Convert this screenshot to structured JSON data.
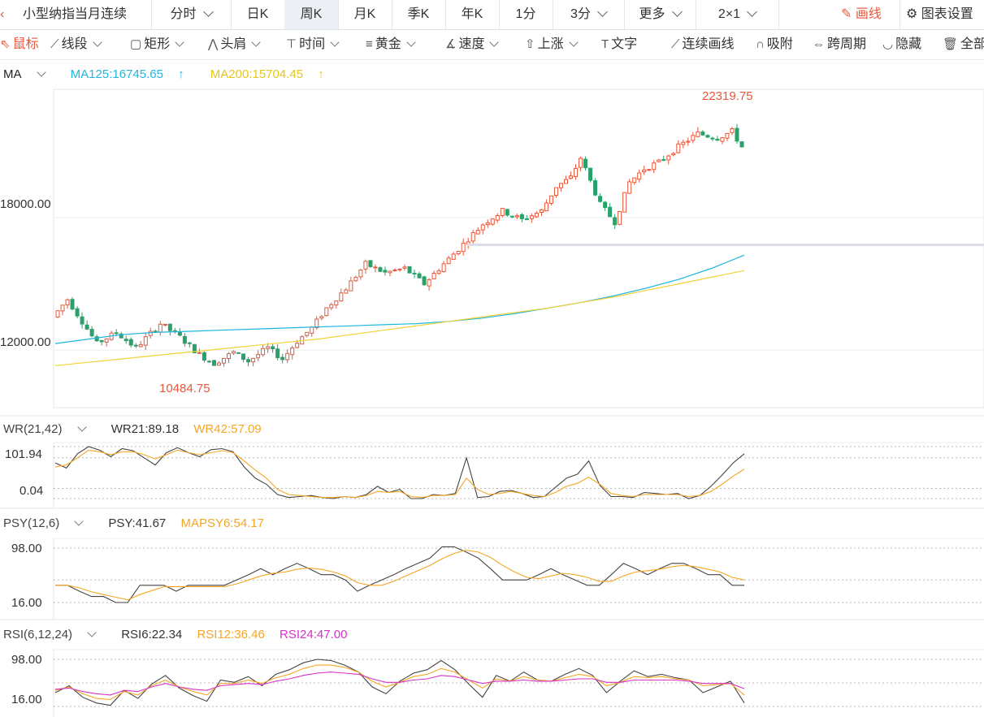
{
  "period_bar": {
    "title": "小型纳指当月连续",
    "items": [
      {
        "label": "分时",
        "dropdown": true
      },
      {
        "label": "日K",
        "dropdown": false
      },
      {
        "label": "周K",
        "dropdown": false,
        "active": true
      },
      {
        "label": "月K",
        "dropdown": false
      },
      {
        "label": "季K",
        "dropdown": false
      },
      {
        "label": "年K",
        "dropdown": false
      },
      {
        "label": "1分",
        "dropdown": false
      },
      {
        "label": "3分",
        "dropdown": true
      },
      {
        "label": "更多",
        "dropdown": true
      },
      {
        "label": "2×1",
        "dropdown": true
      }
    ],
    "draw_label": "画线",
    "settings_label": "图表设置"
  },
  "draw_toolbar": {
    "tools": [
      {
        "label": "鼠标",
        "icon": "cursor-icon",
        "dropdown": false,
        "active": true
      },
      {
        "label": "线段",
        "icon": "segment-icon",
        "dropdown": true
      },
      {
        "label": "矩形",
        "icon": "rectangle-icon",
        "dropdown": true
      },
      {
        "label": "头肩",
        "icon": "head-shoulders-icon",
        "dropdown": true
      },
      {
        "label": "时间",
        "icon": "time-icon",
        "dropdown": true
      },
      {
        "label": "黄金",
        "icon": "golden-ratio-icon",
        "dropdown": true
      },
      {
        "label": "速度",
        "icon": "speed-icon",
        "dropdown": true
      },
      {
        "label": "上涨",
        "icon": "arrow-up-icon",
        "dropdown": true
      },
      {
        "label": "文字",
        "icon": "text-icon",
        "dropdown": false
      },
      {
        "label": "连续画线",
        "icon": "continuous-line-icon",
        "dropdown": false
      },
      {
        "label": "吸附",
        "icon": "magnet-icon",
        "dropdown": false
      },
      {
        "label": "跨周期",
        "icon": "cross-period-icon",
        "dropdown": false
      },
      {
        "label": "隐藏",
        "icon": "eye-hidden-icon",
        "dropdown": false
      },
      {
        "label": "全部",
        "icon": "trash-icon",
        "dropdown": false
      }
    ]
  },
  "main_panel": {
    "indicator": "MA",
    "ma125": "MA125:16745.65",
    "ma125_arrow": "↑",
    "ma200": "MA200:15704.45",
    "ma200_arrow": "↑",
    "y_ticks": [
      "18000.00",
      "12000.00"
    ],
    "high_label": "22319.75",
    "low_label": "10484.75"
  },
  "wr_panel": {
    "indicator": "WR(21,42)",
    "wr21": "WR21:89.18",
    "wr42": "WR42:57.09",
    "y_ticks": [
      "101.94",
      "0.04"
    ]
  },
  "psy_panel": {
    "indicator": "PSY(12,6)",
    "psy": "PSY:41.67",
    "mapsy": "MAPSY6:54.17",
    "y_ticks": [
      "98.00",
      "16.00"
    ]
  },
  "rsi_panel": {
    "indicator": "RSI(6,12,24)",
    "rsi6": "RSI6:22.34",
    "rsi12": "RSI12:36.46",
    "rsi24": "RSI24:47.00",
    "y_ticks": [
      "98.00",
      "16.00"
    ]
  },
  "colors": {
    "up": "#e8573b",
    "down": "#2aa16a",
    "ma125": "#1fb6e0",
    "ma200": "#f0d234",
    "wr21": "#444444",
    "wr42": "#f5a623",
    "psy": "#444444",
    "mapsy": "#f5a623",
    "rsi6": "#444444",
    "rsi12": "#f5a623",
    "rsi24": "#d633c8",
    "accent": "#e8573b"
  },
  "chart_data": [
    {
      "type": "candlestick",
      "title": "",
      "y_ticks": [
        18000,
        12000
      ],
      "ylim": [
        9400,
        23800
      ],
      "n_bars": 120,
      "high": 22319.75,
      "low": 10484.75,
      "ohlc_keypoints": [
        [
          0,
          13500
        ],
        [
          3,
          14300
        ],
        [
          6,
          13300
        ],
        [
          9,
          12300
        ],
        [
          13,
          12800
        ],
        [
          17,
          12100
        ],
        [
          22,
          13200
        ],
        [
          26,
          12600
        ],
        [
          30,
          11800
        ],
        [
          33,
          11400
        ],
        [
          37,
          11900
        ],
        [
          40,
          11500
        ],
        [
          44,
          12100
        ],
        [
          47,
          11600
        ],
        [
          50,
          12400
        ],
        [
          53,
          13000
        ],
        [
          56,
          13900
        ],
        [
          60,
          14800
        ],
        [
          64,
          15900
        ],
        [
          68,
          15500
        ],
        [
          72,
          15700
        ],
        [
          76,
          15000
        ],
        [
          80,
          15900
        ],
        [
          84,
          16800
        ],
        [
          88,
          17700
        ],
        [
          92,
          18300
        ],
        [
          96,
          17900
        ],
        [
          100,
          18300
        ],
        [
          103,
          19400
        ],
        [
          106,
          19800
        ],
        [
          108,
          20700
        ],
        [
          112,
          18600
        ],
        [
          115,
          17800
        ],
        [
          118,
          19600
        ],
        [
          121,
          20200
        ],
        [
          124,
          20500
        ],
        [
          128,
          21200
        ],
        [
          132,
          21800
        ],
        [
          136,
          21600
        ],
        [
          139,
          21900
        ],
        [
          141,
          21200
        ]
      ],
      "series": [
        {
          "name": "MA125",
          "values": [
            12300,
            12500,
            12700,
            12800,
            12850,
            12900,
            12950,
            13000,
            13050,
            13100,
            13150,
            13200,
            13300,
            13450,
            13650,
            13900,
            14150,
            14450,
            14800,
            15200,
            15700,
            16300
          ]
        },
        {
          "name": "MA200",
          "values": [
            11300,
            11450,
            11600,
            11750,
            11900,
            12050,
            12200,
            12350,
            12500,
            12700,
            12900,
            13100,
            13300,
            13500,
            13700,
            13900,
            14150,
            14400,
            14700,
            15000,
            15300,
            15600
          ]
        }
      ]
    },
    {
      "type": "line",
      "title": "",
      "series": [
        {
          "name": "WR21",
          "values": [
            70,
            60,
            88,
            102,
            95,
            82,
            98,
            94,
            80,
            66,
            90,
            100,
            90,
            82,
            96,
            98,
            92,
            62,
            40,
            28,
            8,
            2,
            4,
            6,
            2,
            0,
            4,
            2,
            8,
            24,
            12,
            18,
            0,
            0,
            8,
            6,
            10,
            80,
            2,
            4,
            14,
            16,
            10,
            2,
            4,
            22,
            40,
            48,
            74,
            26,
            4,
            4,
            2,
            12,
            10,
            8,
            10,
            0,
            6,
            24,
            46,
            70,
            88
          ]
        },
        {
          "name": "WR42",
          "values": [
            62,
            66,
            80,
            95,
            92,
            86,
            92,
            92,
            86,
            78,
            86,
            95,
            90,
            86,
            90,
            94,
            90,
            74,
            56,
            40,
            18,
            8,
            6,
            4,
            2,
            2,
            4,
            2,
            6,
            14,
            12,
            14,
            4,
            2,
            6,
            6,
            8,
            40,
            18,
            8,
            10,
            14,
            10,
            6,
            4,
            12,
            24,
            30,
            42,
            28,
            10,
            6,
            4,
            8,
            8,
            8,
            8,
            4,
            6,
            14,
            28,
            44,
            58
          ]
        }
      ]
    },
    {
      "type": "line",
      "title": "",
      "series": [
        {
          "name": "PSY",
          "values": [
            42,
            42,
            33,
            25,
            25,
            16,
            16,
            42,
            42,
            42,
            33,
            42,
            42,
            42,
            42,
            50,
            58,
            67,
            58,
            67,
            75,
            67,
            58,
            58,
            50,
            33,
            42,
            50,
            58,
            67,
            75,
            83,
            100,
            100,
            92,
            83,
            67,
            50,
            50,
            50,
            58,
            67,
            58,
            50,
            42,
            42,
            58,
            75,
            67,
            58,
            67,
            75,
            75,
            67,
            58,
            58,
            42,
            42
          ]
        },
        {
          "name": "MAPSY6",
          "values": [
            42,
            42,
            38,
            32,
            28,
            24,
            20,
            28,
            34,
            40,
            40,
            40,
            40,
            40,
            40,
            44,
            50,
            56,
            60,
            62,
            66,
            68,
            66,
            62,
            56,
            46,
            42,
            42,
            48,
            56,
            64,
            72,
            82,
            90,
            95,
            92,
            84,
            72,
            62,
            54,
            52,
            56,
            60,
            58,
            54,
            48,
            48,
            56,
            62,
            64,
            66,
            70,
            72,
            70,
            66,
            62,
            54,
            50
          ]
        }
      ]
    },
    {
      "type": "line",
      "title": "",
      "series": [
        {
          "name": "RSI6",
          "values": [
            40,
            52,
            32,
            22,
            18,
            44,
            30,
            55,
            70,
            48,
            35,
            25,
            62,
            58,
            68,
            52,
            72,
            80,
            92,
            98,
            96,
            88,
            76,
            50,
            38,
            60,
            74,
            80,
            96,
            80,
            55,
            32,
            70,
            60,
            76,
            62,
            60,
            72,
            82,
            70,
            40,
            60,
            78,
            68,
            72,
            66,
            62,
            40,
            50,
            60,
            22
          ]
        },
        {
          "name": "RSI12",
          "values": [
            44,
            50,
            38,
            30,
            28,
            42,
            36,
            52,
            62,
            50,
            42,
            36,
            56,
            56,
            62,
            56,
            66,
            72,
            82,
            88,
            88,
            84,
            76,
            60,
            50,
            58,
            68,
            72,
            82,
            76,
            62,
            48,
            64,
            60,
            68,
            62,
            60,
            66,
            72,
            68,
            52,
            58,
            68,
            66,
            68,
            64,
            62,
            52,
            54,
            56,
            36
          ]
        },
        {
          "name": "RSI24",
          "values": [
            46,
            48,
            42,
            38,
            36,
            44,
            42,
            50,
            56,
            50,
            46,
            44,
            52,
            54,
            56,
            54,
            60,
            64,
            70,
            74,
            76,
            74,
            72,
            64,
            58,
            58,
            62,
            64,
            70,
            68,
            62,
            56,
            60,
            60,
            62,
            60,
            60,
            62,
            64,
            64,
            58,
            58,
            62,
            62,
            62,
            62,
            60,
            56,
            56,
            56,
            47
          ]
        }
      ]
    }
  ]
}
